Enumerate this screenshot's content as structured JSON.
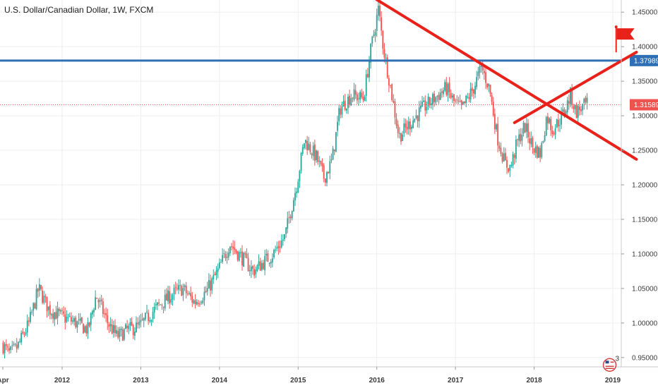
{
  "chart_data": {
    "type": "candlestick",
    "title": "U.S. Dollar/Canadian Dollar, 1W, FXCM",
    "x_ticks": [
      "Apr",
      "2012",
      "2013",
      "2014",
      "2015",
      "2016",
      "2017",
      "2018",
      "2019"
    ],
    "y_ticks": [
      "1.45000",
      "1.40000",
      "1.35000",
      "1.30000",
      "1.25000",
      "1.20000",
      "1.15000",
      "1.10000",
      "1.05000",
      "1.00000",
      "0.95000"
    ],
    "ylim": [
      0.91,
      1.48
    ],
    "xlim": [
      2011.25,
      2019.3
    ],
    "grid": true,
    "up_color": "#26a69a",
    "down_color": "#ef5350",
    "price_path": [
      {
        "t": 2011.25,
        "p": 0.97
      },
      {
        "t": 2011.35,
        "p": 0.955
      },
      {
        "t": 2011.45,
        "p": 0.965
      },
      {
        "t": 2011.6,
        "p": 1.0
      },
      {
        "t": 2011.72,
        "p": 1.05
      },
      {
        "t": 2011.85,
        "p": 1.02
      },
      {
        "t": 2012.0,
        "p": 1.01
      },
      {
        "t": 2012.2,
        "p": 1.0
      },
      {
        "t": 2012.35,
        "p": 0.99
      },
      {
        "t": 2012.45,
        "p": 1.04
      },
      {
        "t": 2012.6,
        "p": 1.0
      },
      {
        "t": 2012.72,
        "p": 0.98
      },
      {
        "t": 2012.85,
        "p": 0.99
      },
      {
        "t": 2013.0,
        "p": 0.995
      },
      {
        "t": 2013.2,
        "p": 1.02
      },
      {
        "t": 2013.4,
        "p": 1.04
      },
      {
        "t": 2013.55,
        "p": 1.05
      },
      {
        "t": 2013.7,
        "p": 1.03
      },
      {
        "t": 2013.85,
        "p": 1.045
      },
      {
        "t": 2014.0,
        "p": 1.075
      },
      {
        "t": 2014.15,
        "p": 1.115
      },
      {
        "t": 2014.3,
        "p": 1.095
      },
      {
        "t": 2014.45,
        "p": 1.075
      },
      {
        "t": 2014.55,
        "p": 1.085
      },
      {
        "t": 2014.7,
        "p": 1.1
      },
      {
        "t": 2014.85,
        "p": 1.125
      },
      {
        "t": 2015.0,
        "p": 1.2
      },
      {
        "t": 2015.1,
        "p": 1.265
      },
      {
        "t": 2015.25,
        "p": 1.24
      },
      {
        "t": 2015.35,
        "p": 1.21
      },
      {
        "t": 2015.45,
        "p": 1.235
      },
      {
        "t": 2015.55,
        "p": 1.31
      },
      {
        "t": 2015.7,
        "p": 1.33
      },
      {
        "t": 2015.85,
        "p": 1.325
      },
      {
        "t": 2015.95,
        "p": 1.4
      },
      {
        "t": 2016.04,
        "p": 1.455
      },
      {
        "t": 2016.1,
        "p": 1.4
      },
      {
        "t": 2016.18,
        "p": 1.35
      },
      {
        "t": 2016.3,
        "p": 1.27
      },
      {
        "t": 2016.45,
        "p": 1.29
      },
      {
        "t": 2016.6,
        "p": 1.31
      },
      {
        "t": 2016.75,
        "p": 1.325
      },
      {
        "t": 2016.9,
        "p": 1.34
      },
      {
        "t": 2017.0,
        "p": 1.32
      },
      {
        "t": 2017.1,
        "p": 1.31
      },
      {
        "t": 2017.25,
        "p": 1.34
      },
      {
        "t": 2017.35,
        "p": 1.37
      },
      {
        "t": 2017.45,
        "p": 1.34
      },
      {
        "t": 2017.55,
        "p": 1.27
      },
      {
        "t": 2017.65,
        "p": 1.23
      },
      {
        "t": 2017.72,
        "p": 1.225
      },
      {
        "t": 2017.8,
        "p": 1.26
      },
      {
        "t": 2017.9,
        "p": 1.285
      },
      {
        "t": 2018.0,
        "p": 1.255
      },
      {
        "t": 2018.1,
        "p": 1.245
      },
      {
        "t": 2018.18,
        "p": 1.3
      },
      {
        "t": 2018.25,
        "p": 1.28
      },
      {
        "t": 2018.35,
        "p": 1.295
      },
      {
        "t": 2018.42,
        "p": 1.31
      },
      {
        "t": 2018.48,
        "p": 1.33
      },
      {
        "t": 2018.55,
        "p": 1.305
      },
      {
        "t": 2018.6,
        "p": 1.31
      },
      {
        "t": 2018.68,
        "p": 1.3159
      }
    ],
    "horizontal_levels": [
      {
        "value": 1.37989,
        "label": "1.37989",
        "color": "#2e6fb5",
        "style": "solid"
      },
      {
        "value": 1.31589,
        "label": "1.31589",
        "color": "#ef5350",
        "style": "dotted"
      }
    ],
    "trend_lines": [
      {
        "points": [
          {
            "t": 2016.0,
            "p": 1.468
          },
          {
            "t": 2019.3,
            "p": 1.237
          }
        ],
        "color": "#e8221a"
      },
      {
        "points": [
          {
            "t": 2017.75,
            "p": 1.29
          },
          {
            "t": 2019.3,
            "p": 1.392
          }
        ],
        "color": "#e8221a"
      }
    ],
    "markers": [
      {
        "type": "flag-icon",
        "t": 2019.15,
        "p": 1.4,
        "color": "#e8221a"
      },
      {
        "type": "us-flag-icon",
        "t": 2018.96,
        "p": 0.925,
        "badge": "3"
      }
    ]
  }
}
